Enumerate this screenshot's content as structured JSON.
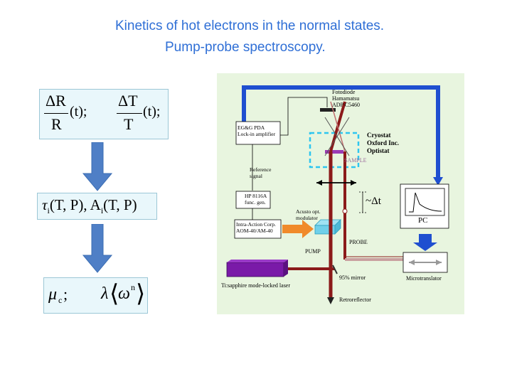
{
  "title": {
    "line1": "Kinetics of hot electrons in the normal states.",
    "line2": "Pump-probe spectroscopy."
  },
  "formulas": {
    "f1": {
      "delta_r": "ΔR",
      "r": "R",
      "t_arg1": "(t);",
      "delta_t": "ΔT",
      "t": "T",
      "t_arg2": "(t);"
    },
    "f2": {
      "tau": "τ",
      "tau_sub": "i",
      "args1": "(T, P),",
      "a": "A",
      "a_sub": "i",
      "args2": "(T, P)"
    },
    "f3": {
      "mu": "μ",
      "mu_sub": "c",
      "semicolon": ";",
      "lambda": "λ",
      "langle": "⟨",
      "omega": "ω",
      "omega_sup": "n",
      "rangle": "⟩"
    }
  },
  "setup": {
    "photodiode": [
      "Fotodiode",
      "Hamamatsu",
      "ADP C5460"
    ],
    "lockin": [
      "EG&G PDA",
      "Lock-in amplifier"
    ],
    "reference": [
      "Reference",
      "signal"
    ],
    "func_gen": [
      "HP 8116A",
      "func. gen."
    ],
    "modulator_driver": [
      "Intra-Action Corp.",
      "AOM-40/AM-40"
    ],
    "acousto": [
      "Acusto opt.",
      "modulator"
    ],
    "cryostat": [
      "Cryostat",
      "Oxford Inc.",
      "Optistat"
    ],
    "sample": "SAMPLE",
    "delay": "~Δt",
    "pc": "PC",
    "probe": "PROBE",
    "pump": "PUMP",
    "mirror": "95% mirror",
    "microtranslator": "Microtranslator",
    "laser": "Ti:sapphire mode-locked laser",
    "retroreflector": "Retroreflector"
  },
  "colors": {
    "title": "#2f6fd6",
    "formula_bg": "#e9f7fb",
    "arrow_fill": "#4f7fc6",
    "figure_bg": "#e8f5df",
    "beam": "#8b1a1a",
    "cable": "#1f4fd0",
    "laser": "#7a1aa8",
    "sample_box": "#2ec6f0"
  }
}
